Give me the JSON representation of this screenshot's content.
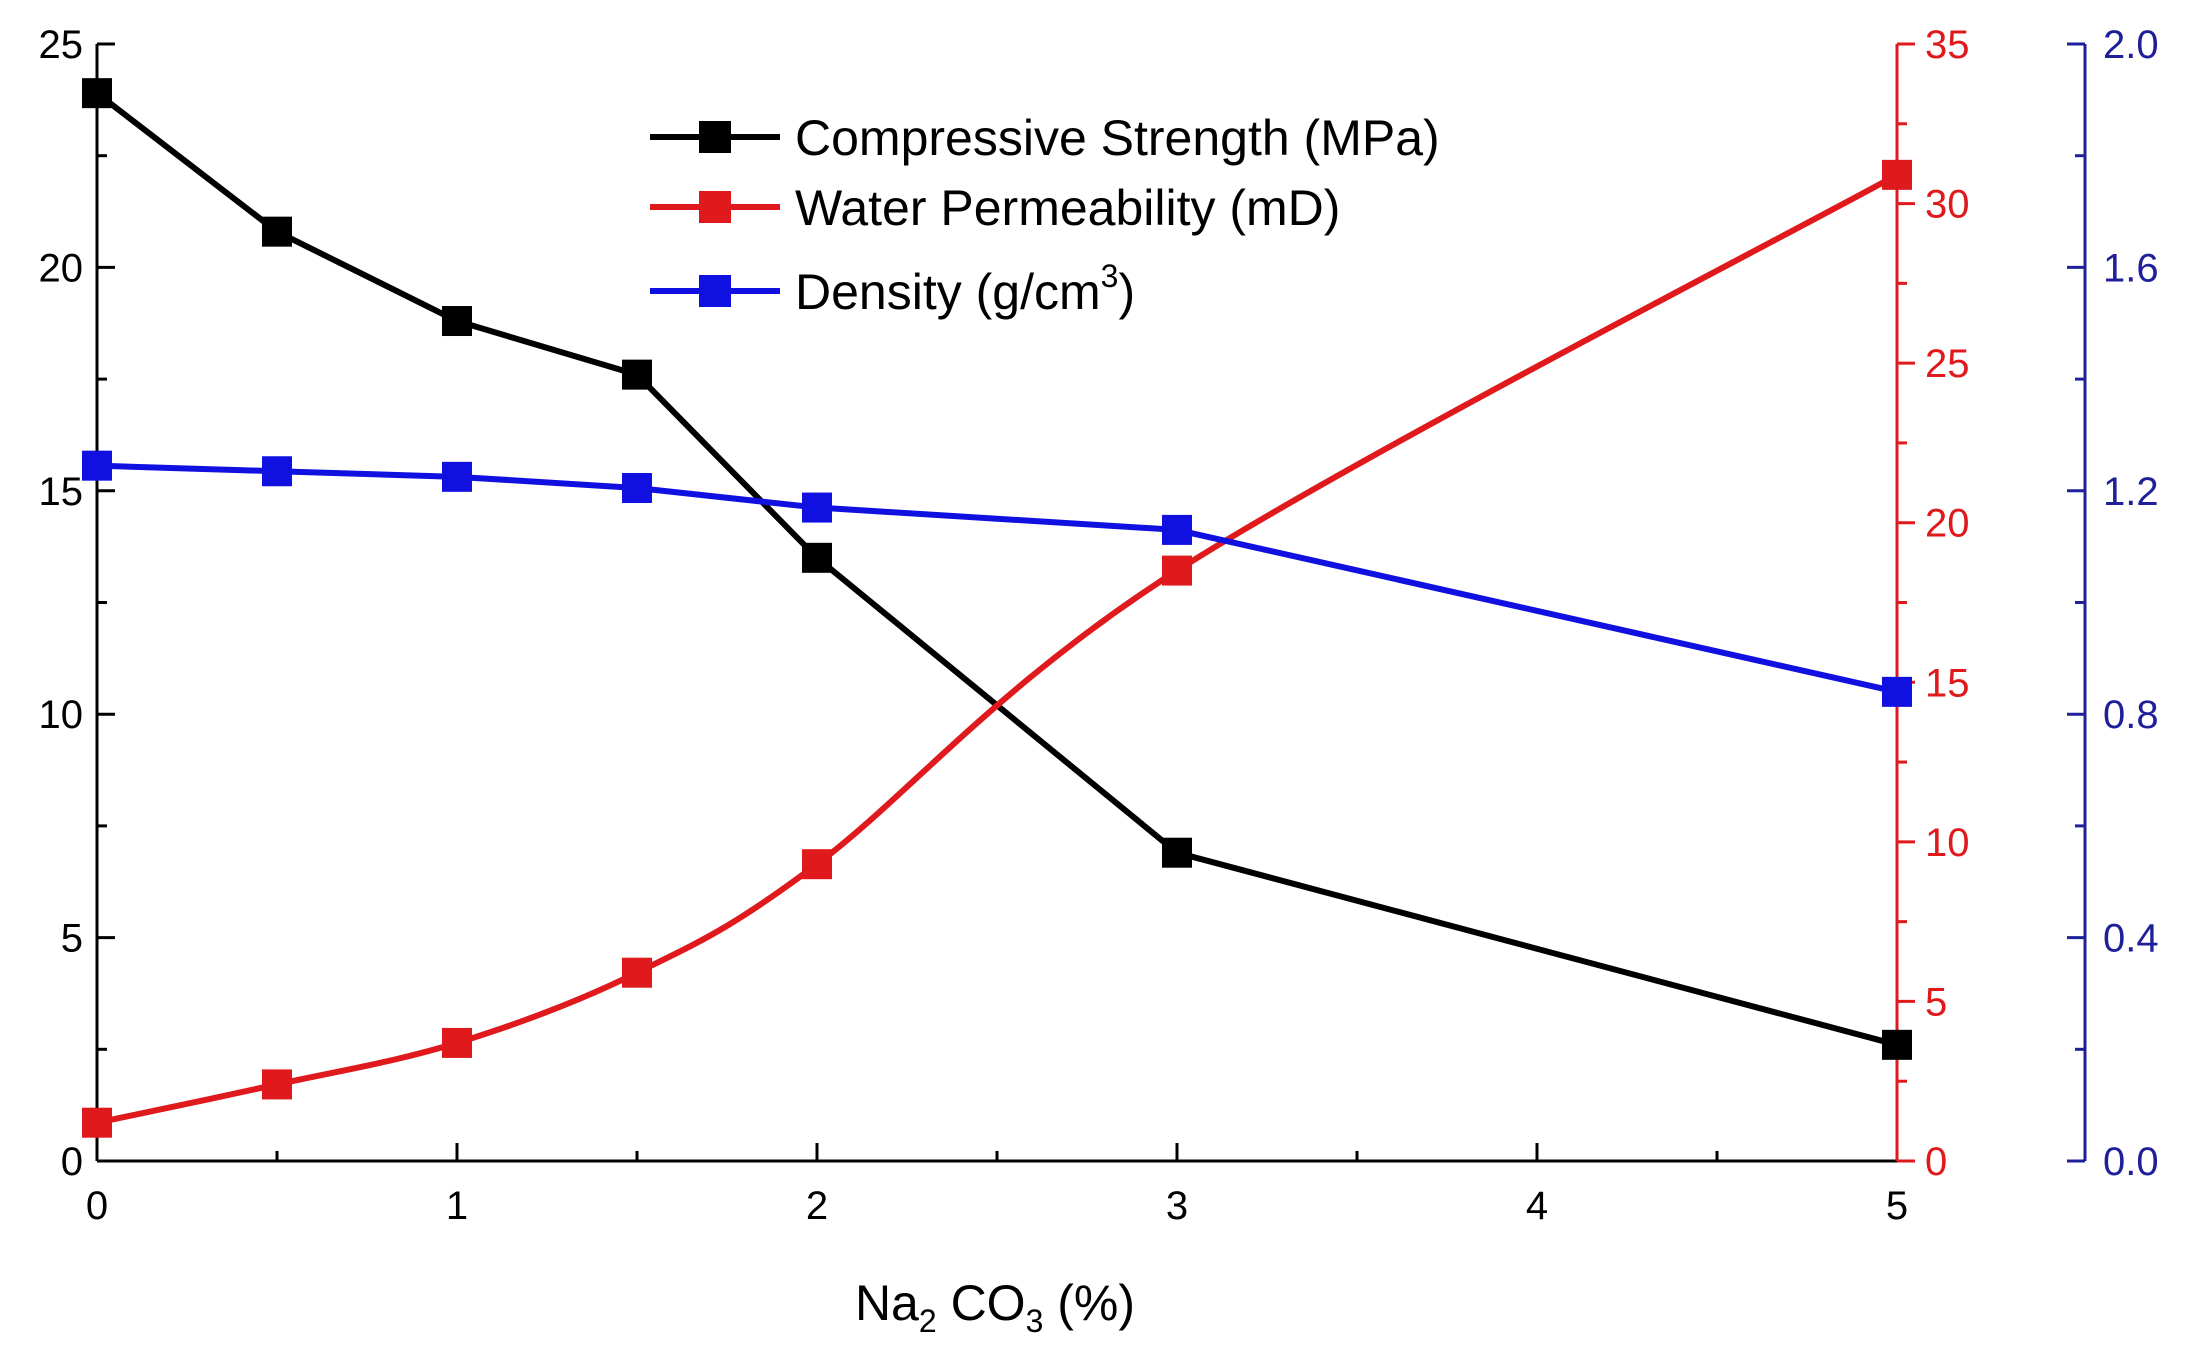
{
  "chart_data": {
    "type": "line",
    "title": "",
    "xlabel": {
      "main": "Na",
      "sub1": "2",
      "mid": " CO",
      "sub2": "3",
      "tail": " (%)"
    },
    "x": [
      0,
      0.5,
      1,
      1.5,
      2,
      3,
      5
    ],
    "xlim": [
      0,
      5
    ],
    "x_ticks": [
      "0",
      "1",
      "2",
      "3",
      "4",
      "5"
    ],
    "axes": {
      "left": {
        "ylim": [
          0,
          25
        ],
        "ticks": [
          "0",
          "5",
          "10",
          "15",
          "20",
          "25"
        ],
        "color": "#000000"
      },
      "right": {
        "ylim": [
          0,
          35
        ],
        "ticks": [
          "0",
          "5",
          "10",
          "15",
          "20",
          "25",
          "30",
          "35"
        ],
        "color": "#e0191c"
      },
      "far_right": {
        "ylim": [
          0,
          2.0
        ],
        "ticks": [
          "0.0",
          "0.4",
          "0.8",
          "1.2",
          "1.6",
          "2.0"
        ],
        "color": "#1f2099"
      }
    },
    "series": [
      {
        "name": "Compressive Strength (MPa)",
        "axis": "left",
        "color": "#000000",
        "values": [
          23.9,
          20.8,
          18.8,
          17.6,
          13.5,
          6.9,
          2.6
        ]
      },
      {
        "name": "Water Permeability (mD)",
        "axis": "right",
        "color": "#e0191c",
        "values": [
          1.2,
          2.4,
          3.7,
          5.9,
          9.3,
          18.5,
          30.9
        ]
      },
      {
        "name": "Density",
        "name_unit": "(g/cm",
        "name_sup": "3",
        "name_close": ")",
        "axis": "far_right",
        "color": "#1010e0",
        "values": [
          1.245,
          1.235,
          1.225,
          1.205,
          1.17,
          1.13,
          0.84
        ]
      }
    ],
    "legend": {
      "position": "top-center"
    },
    "grid": false
  }
}
